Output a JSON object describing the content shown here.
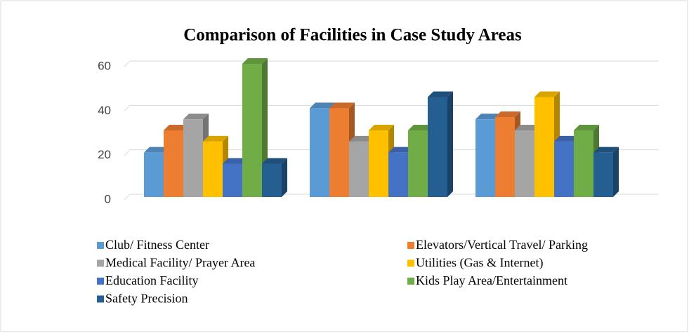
{
  "chart_data": {
    "type": "bar3d",
    "title": "Comparison of Facilities in Case Study Areas",
    "categories": [
      null,
      null,
      null
    ],
    "series": [
      {
        "name": "Club/ Fitness Center",
        "color": "#5b9bd5",
        "values": [
          20,
          40,
          35
        ]
      },
      {
        "name": "Elevators/Vertical Travel/ Parking",
        "color": "#ed7d31",
        "values": [
          30,
          40,
          36
        ]
      },
      {
        "name": "Medical Facility/ Prayer Area",
        "color": "#a5a5a5",
        "values": [
          35,
          25,
          30
        ]
      },
      {
        "name": "Utilities (Gas & Internet)",
        "color": "#ffc000",
        "values": [
          25,
          30,
          45
        ]
      },
      {
        "name": "Education Facility",
        "color": "#4472c4",
        "values": [
          15,
          20,
          25
        ]
      },
      {
        "name": "Kids Play Area/Entertainment",
        "color": "#70ad47",
        "values": [
          60,
          30,
          30
        ]
      },
      {
        "name": "Safety Precision",
        "color": "#255e91",
        "values": [
          15,
          45,
          20
        ]
      }
    ],
    "ylim": [
      0,
      60
    ],
    "yticks": [
      0,
      20,
      40,
      60
    ],
    "grid": true
  }
}
